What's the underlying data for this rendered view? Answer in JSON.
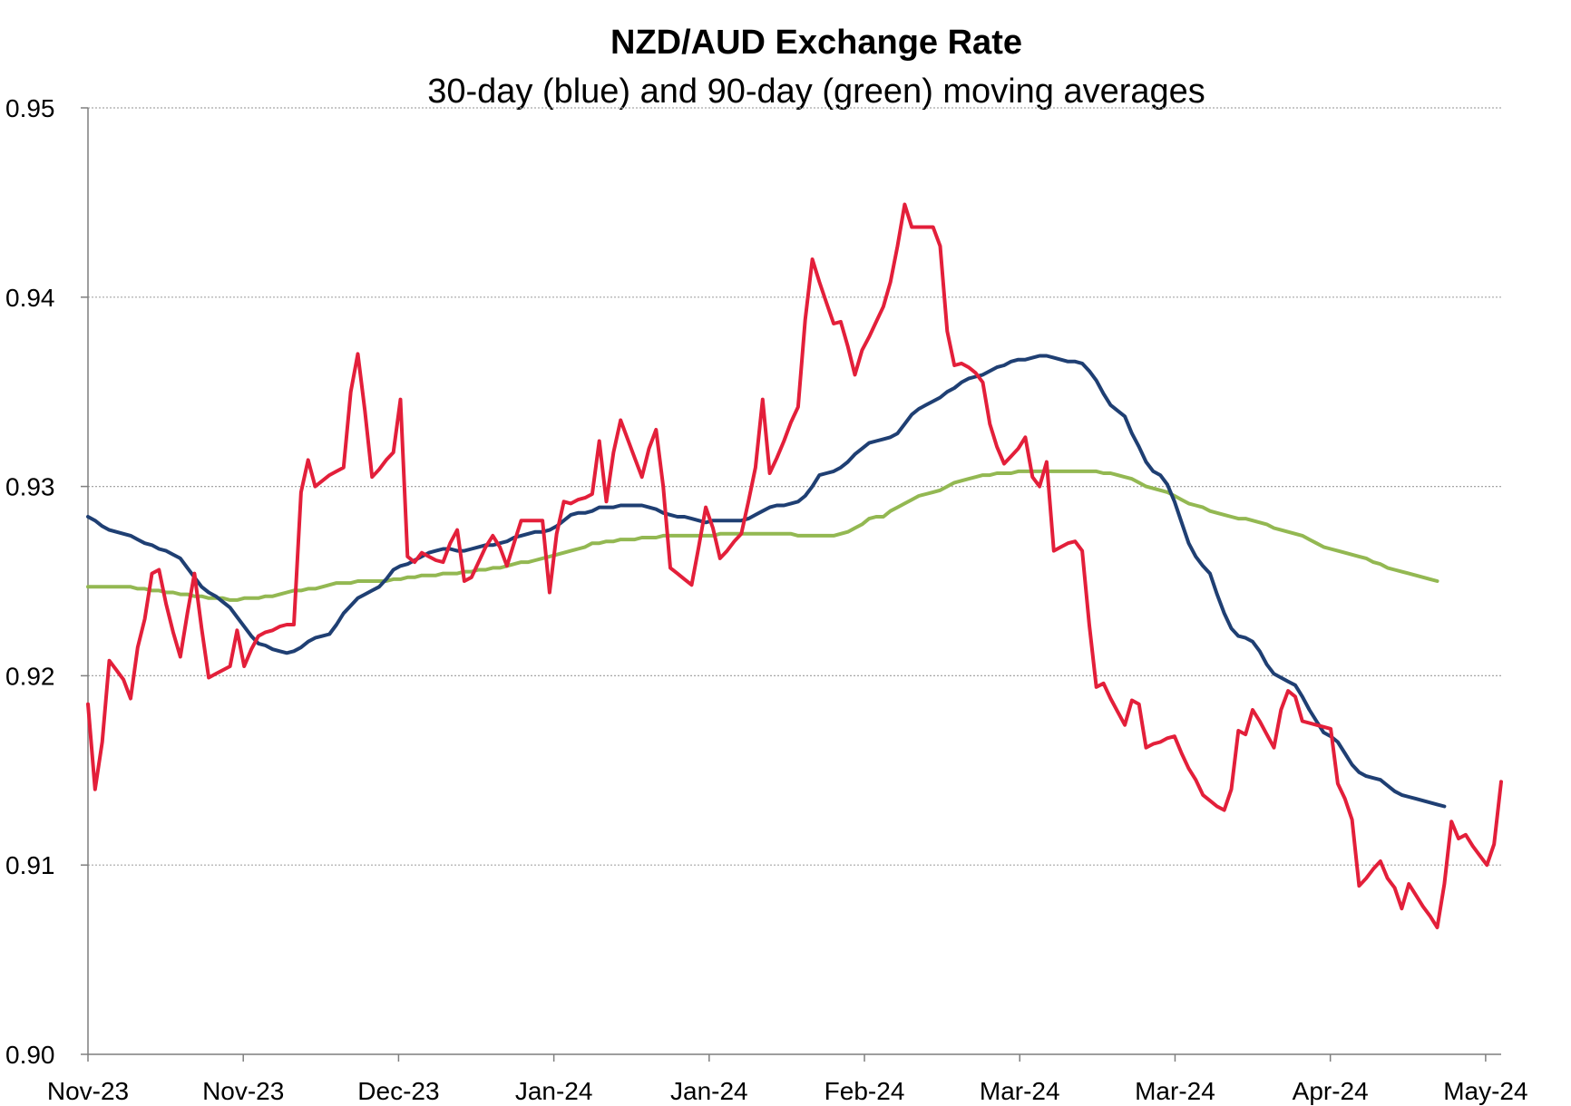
{
  "chart_data": {
    "type": "line",
    "title": "NZD/AUD Exchange Rate",
    "subtitle": "30-day (blue) and 90-day (green) moving averages",
    "xlabel": "",
    "ylabel": "",
    "ylim": [
      0.9,
      0.95
    ],
    "yticks": [
      "0.90",
      "0.91",
      "0.92",
      "0.93",
      "0.94",
      "0.95"
    ],
    "xticks": [
      "Nov-23",
      "Nov-23",
      "Dec-23",
      "Jan-24",
      "Jan-24",
      "Feb-24",
      "Mar-24",
      "Mar-24",
      "Apr-24",
      "May-24"
    ],
    "grid": "horizontal dotted",
    "colors": {
      "daily": "#e31f3a",
      "ma30": "#1f3f73",
      "ma90": "#93b852",
      "grid": "#a6a6a6",
      "axis": "#7f7f7f"
    },
    "series": [
      {
        "color": "#e31f3a",
        "values": [
          0.9185,
          0.914,
          0.9165,
          0.9208,
          0.9203,
          0.9198,
          0.9188,
          0.9215,
          0.923,
          0.9254,
          0.9256,
          0.9238,
          0.9223,
          0.921,
          0.9233,
          0.9254,
          0.9225,
          0.9199,
          0.9201,
          0.9203,
          0.9205,
          0.9224,
          0.9205,
          0.9214,
          0.9221,
          0.9223,
          0.9224,
          0.9226,
          0.9227,
          0.9227,
          0.9297,
          0.9314,
          0.93,
          0.9303,
          0.9306,
          0.9308,
          0.931,
          0.935,
          0.937,
          0.934,
          0.9305,
          0.9309,
          0.9314,
          0.9318,
          0.9346,
          0.9263,
          0.926,
          0.9265,
          0.9263,
          0.9261,
          0.926,
          0.927,
          0.9277,
          0.925,
          0.9252,
          0.926,
          0.9268,
          0.9274,
          0.9268,
          0.9258,
          0.927,
          0.9282,
          0.9282,
          0.9282,
          0.9282,
          0.9244,
          0.9275,
          0.9292,
          0.9291,
          0.9293,
          0.9294,
          0.9296,
          0.9324,
          0.9292,
          0.9318,
          0.9335,
          0.9325,
          0.9315,
          0.9305,
          0.932,
          0.933,
          0.93,
          0.9257,
          0.9254,
          0.9251,
          0.9248,
          0.9268,
          0.9289,
          0.9278,
          0.9262,
          0.9266,
          0.9271,
          0.9275,
          0.9292,
          0.931,
          0.9346,
          0.9307,
          0.9315,
          0.9324,
          0.9334,
          0.9342,
          0.9388,
          0.942,
          0.9408,
          0.9397,
          0.9386,
          0.9387,
          0.9374,
          0.9359,
          0.9372,
          0.9379,
          0.9387,
          0.9395,
          0.9408,
          0.9427,
          0.9449,
          0.9437,
          0.9437,
          0.9437,
          0.9437,
          0.9427,
          0.9382,
          0.9364,
          0.9365,
          0.9363,
          0.936,
          0.9355,
          0.9333,
          0.9321,
          0.9312,
          0.9316,
          0.932,
          0.9326,
          0.9305,
          0.93,
          0.9313,
          0.9266,
          0.9268,
          0.927,
          0.9271,
          0.9266,
          0.9227,
          0.9194,
          0.9196,
          0.9188,
          0.9181,
          0.9174,
          0.9187,
          0.9185,
          0.9162,
          0.9164,
          0.9165,
          0.9167,
          0.9168,
          0.9159,
          0.9151,
          0.9145,
          0.9137,
          0.9134,
          0.9131,
          0.9129,
          0.914,
          0.9171,
          0.9169,
          0.9182,
          0.9176,
          0.9169,
          0.9162,
          0.9182,
          0.9192,
          0.9189,
          0.9176,
          0.9175,
          0.9174,
          0.9173,
          0.9172,
          0.9143,
          0.9135,
          0.9124,
          0.9089,
          0.9093,
          0.9098,
          0.9102,
          0.9093,
          0.9088,
          0.9077,
          0.909,
          0.9084,
          0.9078,
          0.9073,
          0.9067,
          0.909,
          0.9123,
          0.9114,
          0.9116,
          0.911,
          0.9105,
          0.91,
          0.9111,
          0.9144
        ]
      },
      {
        "color": "#1f3f73",
        "values": [
          0.9284,
          0.9282,
          0.9279,
          0.9277,
          0.9276,
          0.9275,
          0.9274,
          0.9272,
          0.927,
          0.9269,
          0.9267,
          0.9266,
          0.9264,
          0.9262,
          0.9257,
          0.9252,
          0.9247,
          0.9244,
          0.9242,
          0.9239,
          0.9236,
          0.9231,
          0.9226,
          0.9221,
          0.9217,
          0.9216,
          0.9214,
          0.9213,
          0.9212,
          0.9213,
          0.9215,
          0.9218,
          0.922,
          0.9221,
          0.9222,
          0.9227,
          0.9233,
          0.9237,
          0.9241,
          0.9243,
          0.9245,
          0.9247,
          0.9251,
          0.9256,
          0.9258,
          0.9259,
          0.9261,
          0.9263,
          0.9265,
          0.9266,
          0.9267,
          0.9267,
          0.9266,
          0.9266,
          0.9267,
          0.9268,
          0.9269,
          0.9269,
          0.927,
          0.9271,
          0.9273,
          0.9274,
          0.9275,
          0.9276,
          0.9276,
          0.9277,
          0.9279,
          0.9282,
          0.9285,
          0.9286,
          0.9286,
          0.9287,
          0.9289,
          0.9289,
          0.9289,
          0.929,
          0.929,
          0.929,
          0.929,
          0.9289,
          0.9288,
          0.9286,
          0.9285,
          0.9284,
          0.9284,
          0.9283,
          0.9282,
          0.9281,
          0.9282,
          0.9282,
          0.9282,
          0.9282,
          0.9282,
          0.9283,
          0.9285,
          0.9287,
          0.9289,
          0.929,
          0.929,
          0.9291,
          0.9292,
          0.9295,
          0.93,
          0.9306,
          0.9307,
          0.9308,
          0.931,
          0.9313,
          0.9317,
          0.932,
          0.9323,
          0.9324,
          0.9325,
          0.9326,
          0.9328,
          0.9333,
          0.9338,
          0.9341,
          0.9343,
          0.9345,
          0.9347,
          0.935,
          0.9352,
          0.9355,
          0.9357,
          0.9358,
          0.9359,
          0.9361,
          0.9363,
          0.9364,
          0.9366,
          0.9367,
          0.9367,
          0.9368,
          0.9369,
          0.9369,
          0.9368,
          0.9367,
          0.9366,
          0.9366,
          0.9365,
          0.9361,
          0.9356,
          0.9349,
          0.9343,
          0.934,
          0.9337,
          0.9328,
          0.9321,
          0.9313,
          0.9308,
          0.9306,
          0.9301,
          0.9292,
          0.9281,
          0.927,
          0.9263,
          0.9258,
          0.9254,
          0.9243,
          0.9233,
          0.9225,
          0.9221,
          0.922,
          0.9218,
          0.9213,
          0.9206,
          0.9201,
          0.9199,
          0.9197,
          0.9195,
          0.9189,
          0.9182,
          0.9176,
          0.917,
          0.9168,
          0.9165,
          0.9159,
          0.9153,
          0.9149,
          0.9147,
          0.9146,
          0.9145,
          0.9142,
          0.9139,
          0.9137,
          0.9136,
          0.9135,
          0.9134,
          0.9133,
          0.9132,
          0.9131
        ]
      },
      {
        "color": "#93b852",
        "values": [
          0.9247,
          0.9247,
          0.9247,
          0.9247,
          0.9247,
          0.9247,
          0.9247,
          0.9246,
          0.9246,
          0.9245,
          0.9245,
          0.9244,
          0.9244,
          0.9243,
          0.9243,
          0.9242,
          0.9242,
          0.9241,
          0.9241,
          0.9241,
          0.924,
          0.924,
          0.9241,
          0.9241,
          0.9241,
          0.9242,
          0.9242,
          0.9243,
          0.9244,
          0.9245,
          0.9245,
          0.9246,
          0.9246,
          0.9247,
          0.9248,
          0.9249,
          0.9249,
          0.9249,
          0.925,
          0.925,
          0.925,
          0.925,
          0.925,
          0.9251,
          0.9251,
          0.9252,
          0.9252,
          0.9253,
          0.9253,
          0.9253,
          0.9254,
          0.9254,
          0.9254,
          0.9255,
          0.9255,
          0.9256,
          0.9256,
          0.9257,
          0.9257,
          0.9258,
          0.9259,
          0.926,
          0.926,
          0.9261,
          0.9262,
          0.9263,
          0.9264,
          0.9265,
          0.9266,
          0.9267,
          0.9268,
          0.927,
          0.927,
          0.9271,
          0.9271,
          0.9272,
          0.9272,
          0.9272,
          0.9273,
          0.9273,
          0.9273,
          0.9274,
          0.9274,
          0.9274,
          0.9274,
          0.9274,
          0.9274,
          0.9274,
          0.9274,
          0.9275,
          0.9275,
          0.9275,
          0.9275,
          0.9275,
          0.9275,
          0.9275,
          0.9275,
          0.9275,
          0.9275,
          0.9275,
          0.9274,
          0.9274,
          0.9274,
          0.9274,
          0.9274,
          0.9274,
          0.9275,
          0.9276,
          0.9278,
          0.928,
          0.9283,
          0.9284,
          0.9284,
          0.9287,
          0.9289,
          0.9291,
          0.9293,
          0.9295,
          0.9296,
          0.9297,
          0.9298,
          0.93,
          0.9302,
          0.9303,
          0.9304,
          0.9305,
          0.9306,
          0.9306,
          0.9307,
          0.9307,
          0.9307,
          0.9308,
          0.9308,
          0.9308,
          0.9308,
          0.9308,
          0.9308,
          0.9308,
          0.9308,
          0.9308,
          0.9308,
          0.9308,
          0.9308,
          0.9307,
          0.9307,
          0.9306,
          0.9305,
          0.9304,
          0.9302,
          0.93,
          0.9299,
          0.9298,
          0.9297,
          0.9295,
          0.9293,
          0.9291,
          0.929,
          0.9289,
          0.9287,
          0.9286,
          0.9285,
          0.9284,
          0.9283,
          0.9283,
          0.9282,
          0.9281,
          0.928,
          0.9278,
          0.9277,
          0.9276,
          0.9275,
          0.9274,
          0.9272,
          0.927,
          0.9268,
          0.9267,
          0.9266,
          0.9265,
          0.9264,
          0.9263,
          0.9262,
          0.926,
          0.9259,
          0.9257,
          0.9256,
          0.9255,
          0.9254,
          0.9253,
          0.9252,
          0.9251,
          0.925
        ]
      }
    ]
  }
}
